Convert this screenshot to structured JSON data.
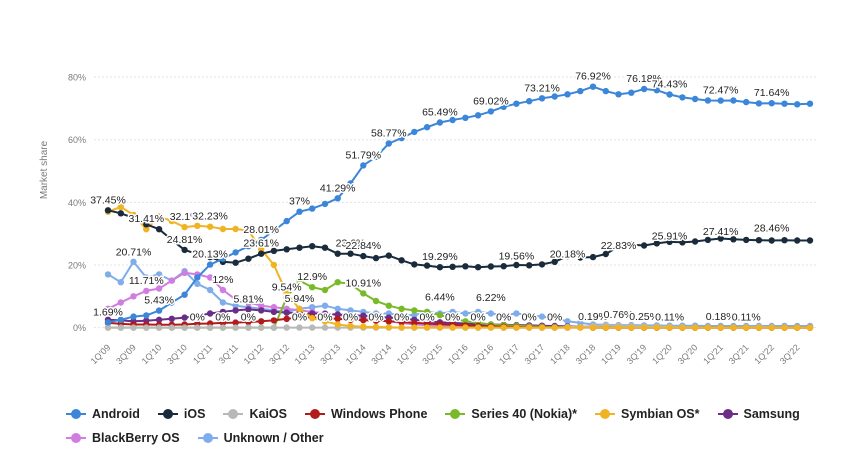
{
  "chart_data": {
    "type": "line",
    "ylabel": "Market share",
    "y_tick_labels": [
      "0%",
      "20%",
      "40%",
      "60%",
      "80%"
    ],
    "y_ticks": [
      0,
      20,
      40,
      60,
      80
    ],
    "ylim": [
      -3,
      88
    ],
    "grid": true,
    "legend_position": "bottom",
    "x_tick_labels": [
      "1Q'09",
      "3Q'09",
      "1Q'10",
      "3Q'10",
      "1Q'11",
      "3Q'11",
      "1Q'12",
      "3Q'12",
      "1Q'13",
      "3Q'13",
      "1Q'14",
      "3Q'14",
      "1Q'15",
      "3Q'15",
      "1Q'16",
      "3Q'16",
      "1Q'17",
      "3Q'17",
      "1Q'18",
      "3Q'18",
      "1Q'19",
      "3Q'19",
      "1Q'20",
      "3Q'20",
      "1Q'21",
      "3Q'21",
      "1Q'22",
      "3Q'22"
    ],
    "categories": [
      "1Q'09",
      "2Q'09",
      "3Q'09",
      "4Q'09",
      "1Q'10",
      "2Q'10",
      "3Q'10",
      "4Q'10",
      "1Q'11",
      "2Q'11",
      "3Q'11",
      "4Q'11",
      "1Q'12",
      "2Q'12",
      "3Q'12",
      "4Q'12",
      "1Q'13",
      "2Q'13",
      "3Q'13",
      "4Q'13",
      "1Q'14",
      "2Q'14",
      "3Q'14",
      "4Q'14",
      "1Q'15",
      "2Q'15",
      "3Q'15",
      "4Q'15",
      "1Q'16",
      "2Q'16",
      "3Q'16",
      "4Q'16",
      "1Q'17",
      "2Q'17",
      "3Q'17",
      "4Q'17",
      "1Q'18",
      "2Q'18",
      "3Q'18",
      "4Q'18",
      "1Q'19",
      "2Q'19",
      "3Q'19",
      "4Q'19",
      "1Q'20",
      "2Q'20",
      "3Q'20",
      "4Q'20",
      "1Q'21",
      "2Q'21",
      "3Q'21",
      "4Q'21",
      "1Q'22",
      "2Q'22",
      "3Q'22",
      "4Q'22"
    ],
    "series": [
      {
        "name": "Android",
        "color": "#3b86d8",
        "values": [
          1.69,
          2.5,
          3.5,
          3.9,
          5.43,
          8.0,
          10.5,
          16.0,
          20.13,
          22.0,
          24.0,
          26.0,
          28.01,
          31.0,
          34.0,
          37.0,
          38.0,
          39.5,
          41.29,
          46.0,
          51.79,
          54.5,
          58.77,
          60.5,
          62.5,
          64.0,
          65.49,
          66.3,
          67.0,
          67.8,
          69.02,
          70.5,
          71.5,
          72.3,
          73.21,
          73.8,
          74.5,
          75.5,
          76.92,
          75.5,
          74.5,
          75.0,
          76.18,
          75.8,
          74.43,
          73.5,
          73.0,
          72.5,
          72.47,
          72.5,
          72.0,
          71.6,
          71.64,
          71.5,
          71.3,
          71.5
        ]
      },
      {
        "name": "iOS",
        "color": "#1a2b3c",
        "values": [
          37.45,
          36.5,
          35.0,
          33.0,
          31.41,
          28.0,
          24.81,
          23.5,
          22.5,
          21.0,
          20.71,
          22.0,
          23.61,
          24.5,
          25.0,
          25.5,
          26.0,
          25.5,
          23.61,
          23.6,
          22.84,
          22.2,
          23.0,
          21.5,
          20.18,
          19.8,
          19.29,
          19.4,
          19.56,
          19.3,
          19.5,
          19.6,
          20.0,
          19.9,
          20.18,
          21.0,
          22.83,
          22.4,
          22.5,
          23.5,
          25.91,
          26.5,
          26.2,
          26.9,
          27.41,
          27.2,
          27.5,
          28.0,
          28.46,
          28.2,
          28.0,
          27.9,
          27.8,
          27.9,
          27.8,
          27.8
        ]
      },
      {
        "name": "KaiOS",
        "color": "#b8b8b8",
        "values": [
          0,
          0,
          0,
          0,
          0,
          0,
          0,
          0,
          0,
          0,
          0,
          0,
          0,
          0,
          0,
          0,
          0,
          0,
          0,
          0,
          0,
          0,
          0,
          0,
          0,
          0,
          0,
          0,
          0,
          0,
          0,
          0,
          0,
          0,
          0,
          0,
          0.19,
          0.3,
          0.5,
          0.76,
          0.6,
          0.5,
          0.4,
          0.3,
          0.25,
          0.2,
          0.15,
          0.12,
          0.11,
          0.12,
          0.15,
          0.18,
          0.16,
          0.12,
          0.11,
          0.1
        ]
      },
      {
        "name": "Windows Phone",
        "color": "#b21b1b",
        "values": [
          1.5,
          1.2,
          1.0,
          1.0,
          0.9,
          0.9,
          1.0,
          1.2,
          1.3,
          1.5,
          1.6,
          1.8,
          2.0,
          2.3,
          2.8,
          3.2,
          3.3,
          3.0,
          2.8,
          2.5,
          2.4,
          2.2,
          2.0,
          1.8,
          1.5,
          1.3,
          1.1,
          0.9,
          0.7,
          0.5,
          0.4,
          0.3,
          0.2,
          0.1,
          0.1,
          0.1,
          0.1,
          0.1,
          0,
          0,
          0,
          0,
          0,
          0,
          0,
          0,
          0,
          0,
          0,
          0,
          0,
          0,
          0,
          0,
          0,
          0
        ]
      },
      {
        "name": "Series 40 (Nokia)*",
        "color": "#7ab929",
        "values": [
          0,
          0,
          0,
          0,
          0,
          0,
          0,
          0,
          0,
          0,
          0,
          0,
          0,
          0,
          9.54,
          15.0,
          12.9,
          12.0,
          14.5,
          14.0,
          10.91,
          8.5,
          7.0,
          6.0,
          5.5,
          5.0,
          4.0,
          3.0,
          2.0,
          1.5,
          1.0,
          0.8,
          0.6,
          0.4,
          0.3,
          0.2,
          0.1,
          0.1,
          0,
          0,
          0,
          0,
          0,
          0,
          0,
          0,
          0,
          0,
          0,
          0,
          0,
          0,
          0,
          0,
          0,
          0
        ]
      },
      {
        "name": "Symbian OS*",
        "color": "#f0b323",
        "values": [
          37.0,
          38.5,
          36.0,
          31.41,
          35.5,
          34.0,
          32.1,
          32.5,
          32.23,
          31.5,
          31.5,
          31.0,
          25.0,
          20.0,
          11.0,
          5.94,
          3.0,
          2.0,
          1.0,
          0.5,
          0.3,
          0.2,
          0.1,
          0,
          0,
          0,
          0,
          0,
          0,
          0,
          0,
          0,
          0,
          0,
          0,
          0,
          0,
          0,
          0,
          0,
          0,
          0,
          0,
          0,
          0,
          0,
          0,
          0,
          0,
          0,
          0,
          0,
          0,
          0,
          0,
          0
        ]
      },
      {
        "name": "Samsung",
        "color": "#6b2d86",
        "values": [
          2.5,
          2.3,
          2.0,
          2.2,
          2.5,
          2.8,
          3.2,
          3.8,
          4.5,
          5.0,
          5.5,
          5.8,
          5.5,
          5.0,
          4.8,
          4.6,
          4.5,
          4.4,
          4.2,
          4.0,
          3.8,
          3.5,
          3.2,
          3.0,
          2.5,
          2.0,
          1.7,
          1.5,
          1.3,
          1.1,
          1.0,
          0.9,
          0.8,
          0.7,
          0.6,
          0.5,
          0.4,
          0.3,
          0.2,
          0.2,
          0.2,
          0.15,
          0.1,
          0.1,
          0.1,
          0.1,
          0.1,
          0.1,
          0.1,
          0.1,
          0.1,
          0.1,
          0.1,
          0.1,
          0.1,
          0.1
        ]
      },
      {
        "name": "BlackBerry OS",
        "color": "#d17ce0",
        "values": [
          6.0,
          8.0,
          10.0,
          11.71,
          12.5,
          15.0,
          17.5,
          17.0,
          16.0,
          12.0,
          9.0,
          8.0,
          7.0,
          6.5,
          6.0,
          5.5,
          5.0,
          4.5,
          4.0,
          3.5,
          3.0,
          2.5,
          2.0,
          1.5,
          1.0,
          0.8,
          0.5,
          0.3,
          0.2,
          0.1,
          0.1,
          0,
          0,
          0,
          0,
          0,
          0,
          0,
          0,
          0,
          0,
          0,
          0,
          0,
          0,
          0,
          0,
          0,
          0,
          0,
          0,
          0,
          0,
          0,
          0,
          0
        ]
      },
      {
        "name": "Unknown / Other",
        "color": "#7fadea",
        "values": [
          17.0,
          14.5,
          21.0,
          16.0,
          17.0,
          15.0,
          18.0,
          14.0,
          12.0,
          8.0,
          7.0,
          6.5,
          6.0,
          5.5,
          5.0,
          6.0,
          6.5,
          7.0,
          6.0,
          5.5,
          5.0,
          4.5,
          4.5,
          4.0,
          4.0,
          5.0,
          4.5,
          5.0,
          4.5,
          5.0,
          4.5,
          4.0,
          4.5,
          4.0,
          3.5,
          3.0,
          2.0,
          1.5,
          1.0,
          0.9,
          0.8,
          0.8,
          0.7,
          0.7,
          0.6,
          0.6,
          0.6,
          0.5,
          0.5,
          0.5,
          0.5,
          0.5,
          0.5,
          0.5,
          0.5,
          0.5
        ]
      }
    ],
    "annotations": [
      {
        "text": "37.45%",
        "x": "1Q'09",
        "y": 37.45
      },
      {
        "text": "31.41%",
        "x": "4Q'09",
        "y": 31.41
      },
      {
        "text": "20.71%",
        "x": "3Q'09",
        "y": 20.71
      },
      {
        "text": "24.81%",
        "x": "3Q'10",
        "y": 24.81
      },
      {
        "text": "32.1%",
        "x": "3Q'10",
        "y": 32.1
      },
      {
        "text": "32.23%",
        "x": "1Q'11",
        "y": 32.23
      },
      {
        "text": "20.13%",
        "x": "1Q'11",
        "y": 20.13
      },
      {
        "text": "1.69%",
        "x": "1Q'09",
        "y": 1.69
      },
      {
        "text": "11.71%",
        "x": "4Q'09",
        "y": 11.71
      },
      {
        "text": "5.43%",
        "x": "1Q'10",
        "y": 5.43
      },
      {
        "text": "12%",
        "x": "2Q'11",
        "y": 12
      },
      {
        "text": "5.81%",
        "x": "4Q'11",
        "y": 5.81
      },
      {
        "text": "0%",
        "x": "4Q'10",
        "y": 0
      },
      {
        "text": "0%",
        "x": "2Q'11",
        "y": 0
      },
      {
        "text": "0%",
        "x": "4Q'11",
        "y": 0
      },
      {
        "text": "28.01%",
        "x": "1Q'12",
        "y": 28.01
      },
      {
        "text": "9.54%",
        "x": "3Q'12",
        "y": 9.54
      },
      {
        "text": "37%",
        "x": "4Q'12",
        "y": 37
      },
      {
        "text": "41.29%",
        "x": "3Q'13",
        "y": 41.29
      },
      {
        "text": "51.79%",
        "x": "1Q'14",
        "y": 51.79
      },
      {
        "text": "58.77%",
        "x": "3Q'14",
        "y": 58.77
      },
      {
        "text": "65.49%",
        "x": "3Q'15",
        "y": 65.49
      },
      {
        "text": "69.02%",
        "x": "3Q'16",
        "y": 69.02
      },
      {
        "text": "73.21%",
        "x": "3Q'17",
        "y": 73.21
      },
      {
        "text": "76.92%",
        "x": "3Q'18",
        "y": 76.92
      },
      {
        "text": "76.18%",
        "x": "3Q'19",
        "y": 76.18
      },
      {
        "text": "74.43%",
        "x": "1Q'20",
        "y": 74.43
      },
      {
        "text": "72.47%",
        "x": "1Q'21",
        "y": 72.47
      },
      {
        "text": "71.64%",
        "x": "1Q'22",
        "y": 71.64
      },
      {
        "text": "23.61%",
        "x": "1Q'12",
        "y": 23.61
      },
      {
        "text": "23.6%",
        "x": "4Q'13",
        "y": 23.6
      },
      {
        "text": "22.84%",
        "x": "1Q'14",
        "y": 22.84
      },
      {
        "text": "12.9%",
        "x": "1Q'13",
        "y": 12.9
      },
      {
        "text": "5.94%",
        "x": "4Q'12",
        "y": 5.94
      },
      {
        "text": "10.91%",
        "x": "1Q'14",
        "y": 10.91
      },
      {
        "text": "19.29%",
        "x": "3Q'15",
        "y": 19.29
      },
      {
        "text": "19.56%",
        "x": "1Q'17",
        "y": 19.56
      },
      {
        "text": "20.18%",
        "x": "1Q'18",
        "y": 20.18
      },
      {
        "text": "22.83%",
        "x": "1Q'19",
        "y": 22.83
      },
      {
        "text": "25.91%",
        "x": "1Q'20",
        "y": 25.91
      },
      {
        "text": "27.41%",
        "x": "1Q'21",
        "y": 27.41
      },
      {
        "text": "28.46%",
        "x": "1Q'22",
        "y": 28.46
      },
      {
        "text": "6.44%",
        "x": "3Q'15",
        "y": 6.44
      },
      {
        "text": "6.22%",
        "x": "3Q'16",
        "y": 6.22
      },
      {
        "text": "0%",
        "x": "4Q'12",
        "y": 0
      },
      {
        "text": "0%",
        "x": "2Q'13",
        "y": 0
      },
      {
        "text": "0%",
        "x": "4Q'13",
        "y": 0
      },
      {
        "text": "0%",
        "x": "2Q'14",
        "y": 0
      },
      {
        "text": "0%",
        "x": "4Q'14",
        "y": 0
      },
      {
        "text": "0%",
        "x": "2Q'15",
        "y": 0
      },
      {
        "text": "0%",
        "x": "4Q'15",
        "y": 0
      },
      {
        "text": "0%",
        "x": "2Q'16",
        "y": 0
      },
      {
        "text": "0%",
        "x": "4Q'16",
        "y": 0
      },
      {
        "text": "0%",
        "x": "2Q'17",
        "y": 0
      },
      {
        "text": "0%",
        "x": "4Q'17",
        "y": 0
      },
      {
        "text": "0.19%",
        "x": "3Q'18",
        "y": 0.19
      },
      {
        "text": "0.76%",
        "x": "1Q'19",
        "y": 0.76
      },
      {
        "text": "0.25%",
        "x": "3Q'19",
        "y": 0.25
      },
      {
        "text": "0.11%",
        "x": "1Q'20",
        "y": 0.11
      },
      {
        "text": "0.18%",
        "x": "1Q'21",
        "y": 0.18
      },
      {
        "text": "0.11%",
        "x": "3Q'21",
        "y": 0.11
      }
    ]
  }
}
